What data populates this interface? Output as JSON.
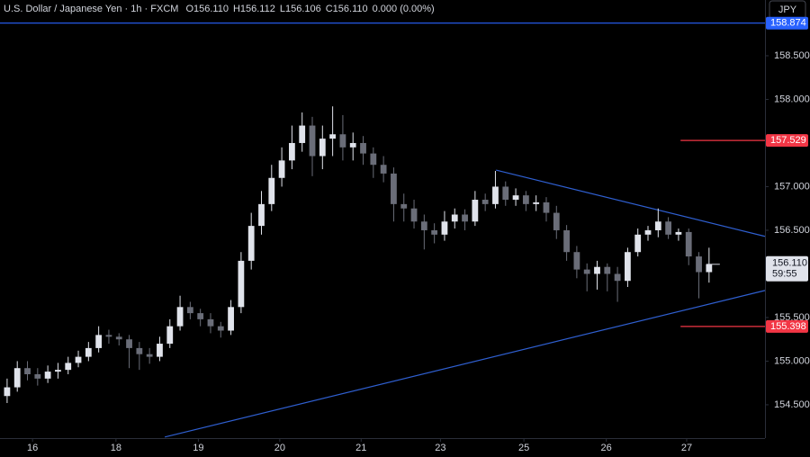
{
  "header": {
    "title": "U.S. Dollar / Japanese Yen · 1h · FXCM",
    "ohlc": [
      "O156.110",
      "H156.112",
      "L156.106",
      "C156.110",
      "0.000 (0.00%)"
    ],
    "currency_button": "JPY"
  },
  "chart_data": {
    "type": "candlestick",
    "up_color": "#e0e3eb",
    "down_color": "#6a6d78",
    "x": [
      0,
      1,
      2,
      3,
      4,
      5,
      6,
      7,
      8,
      9,
      10,
      11,
      12,
      13,
      14,
      15,
      16,
      17,
      18,
      19,
      20,
      21,
      22,
      23,
      24,
      25,
      26,
      27,
      28,
      29,
      30,
      31,
      32,
      33,
      34,
      35,
      36,
      37,
      38,
      39,
      40,
      41,
      42,
      43,
      44,
      45,
      46,
      47,
      48,
      49,
      50,
      51,
      52,
      53,
      54,
      55,
      56,
      57,
      58,
      59,
      60,
      61,
      62,
      63,
      64,
      65,
      66,
      67,
      68,
      69
    ],
    "open": [
      154.6,
      154.7,
      154.92,
      154.85,
      154.8,
      154.88,
      154.9,
      154.98,
      155.05,
      155.15,
      155.3,
      155.28,
      155.25,
      155.15,
      155.08,
      155.05,
      155.2,
      155.4,
      155.62,
      155.55,
      155.48,
      155.4,
      155.35,
      155.62,
      156.15,
      156.55,
      156.8,
      157.1,
      157.3,
      157.5,
      157.7,
      157.35,
      157.55,
      157.6,
      157.45,
      157.5,
      157.38,
      157.25,
      157.15,
      156.8,
      156.75,
      156.6,
      156.5,
      156.45,
      156.6,
      156.68,
      156.6,
      156.85,
      156.8,
      157.0,
      156.85,
      156.9,
      156.8,
      156.82,
      156.7,
      156.5,
      156.25,
      156.05,
      156.0,
      156.08,
      156.0,
      155.92,
      156.25,
      156.45,
      156.5,
      156.6,
      156.45,
      156.48,
      156.2,
      156.02
    ],
    "high": [
      154.8,
      155.0,
      155.0,
      154.92,
      154.95,
      154.98,
      155.05,
      155.12,
      155.22,
      155.4,
      155.36,
      155.32,
      155.3,
      155.22,
      155.15,
      155.28,
      155.48,
      155.75,
      155.68,
      155.6,
      155.55,
      155.45,
      155.7,
      156.25,
      156.7,
      156.95,
      157.25,
      157.45,
      157.7,
      157.85,
      157.8,
      157.7,
      157.92,
      157.82,
      157.62,
      157.58,
      157.45,
      157.35,
      157.22,
      156.92,
      156.85,
      156.68,
      156.58,
      156.72,
      156.75,
      156.74,
      156.95,
      156.92,
      157.18,
      157.06,
      156.98,
      156.95,
      156.9,
      156.88,
      156.78,
      156.56,
      156.32,
      156.12,
      156.15,
      156.12,
      156.08,
      156.3,
      156.52,
      156.55,
      156.75,
      156.65,
      156.52,
      156.52,
      156.25,
      156.3
    ],
    "low": [
      154.52,
      154.65,
      154.78,
      154.72,
      154.75,
      154.8,
      154.85,
      154.93,
      155.0,
      155.1,
      155.2,
      155.18,
      154.92,
      154.9,
      154.97,
      155.0,
      155.15,
      155.35,
      155.48,
      155.4,
      155.32,
      155.27,
      155.3,
      155.55,
      156.05,
      156.45,
      156.72,
      157.0,
      157.2,
      157.4,
      157.12,
      157.2,
      157.35,
      157.3,
      157.3,
      157.25,
      157.1,
      157.05,
      156.6,
      156.6,
      156.52,
      156.28,
      156.35,
      156.38,
      156.52,
      156.5,
      156.55,
      156.72,
      156.75,
      156.78,
      156.78,
      156.72,
      156.72,
      156.6,
      156.4,
      156.15,
      155.95,
      155.8,
      155.82,
      155.8,
      155.68,
      155.85,
      156.2,
      156.38,
      156.42,
      156.4,
      156.38,
      156.1,
      155.72,
      155.9
    ],
    "close": [
      154.7,
      154.92,
      154.85,
      154.8,
      154.88,
      154.9,
      154.98,
      155.05,
      155.15,
      155.3,
      155.28,
      155.25,
      155.15,
      155.08,
      155.05,
      155.2,
      155.4,
      155.62,
      155.55,
      155.48,
      155.4,
      155.35,
      155.62,
      156.15,
      156.55,
      156.8,
      157.1,
      157.3,
      157.5,
      157.7,
      157.35,
      157.55,
      157.6,
      157.45,
      157.5,
      157.38,
      157.25,
      157.15,
      156.8,
      156.75,
      156.6,
      156.5,
      156.45,
      156.6,
      156.68,
      156.6,
      156.85,
      156.8,
      157.0,
      156.85,
      156.9,
      156.8,
      156.82,
      156.7,
      156.5,
      156.25,
      156.05,
      156.0,
      156.08,
      156.0,
      155.92,
      156.25,
      156.45,
      156.5,
      156.6,
      156.45,
      156.48,
      156.2,
      156.02,
      156.11
    ],
    "xlim": [
      -0.7,
      74.5
    ],
    "xticks": [
      {
        "value": 2.5,
        "label": "16"
      },
      {
        "value": 10.7,
        "label": "18"
      },
      {
        "value": 18.8,
        "label": "19"
      },
      {
        "value": 26.8,
        "label": "20"
      },
      {
        "value": 34.8,
        "label": "21"
      },
      {
        "value": 42.6,
        "label": "23"
      },
      {
        "value": 50.8,
        "label": "25"
      },
      {
        "value": 58.9,
        "label": "26"
      },
      {
        "value": 66.8,
        "label": "27"
      }
    ],
    "ylim": [
      154.118,
      159.139
    ],
    "yticks": [
      {
        "value": 154.5,
        "label": "154.500"
      },
      {
        "value": 155,
        "label": "155.000"
      },
      {
        "value": 155.5,
        "label": "155.500"
      },
      {
        "value": 156.5,
        "label": "156.500"
      },
      {
        "value": 157,
        "label": "157.000"
      },
      {
        "value": 158,
        "label": "158.000"
      },
      {
        "value": 158.5,
        "label": "158.500"
      }
    ],
    "levels": [
      {
        "value": 158.874,
        "label": "158.874",
        "color": "#2962ff"
      },
      {
        "value": 157.529,
        "label": "157.529",
        "color": "#f23645",
        "start": 66.2
      },
      {
        "value": 155.398,
        "label": "155.398",
        "color": "#f23645",
        "start": 66.2
      }
    ],
    "trendlines": [
      {
        "x": [
          48.06,
          74.5
        ],
        "y": [
          157.19,
          156.43
        ],
        "color": "#2f5fd0"
      },
      {
        "x": [
          15.5,
          74.5
        ],
        "y": [
          154.13,
          155.81
        ],
        "color": "#2f5fd0"
      }
    ],
    "last_price": {
      "value": 156.11,
      "label": "156.110",
      "countdown": "59:55"
    }
  }
}
